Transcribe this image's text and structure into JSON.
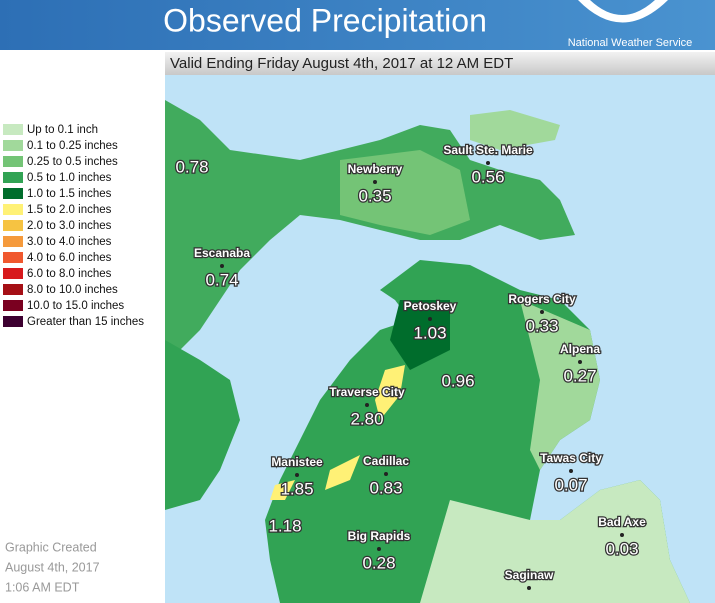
{
  "header": {
    "title": "Observed Precipitation",
    "agency": "National Weather Service"
  },
  "subheader": "Valid Ending Friday August 4th, 2017 at 12 AM EDT",
  "legend": {
    "items": [
      {
        "label": "Up to 0.1 inch",
        "color": "#c7e9c0"
      },
      {
        "label": "0.1 to 0.25 inches",
        "color": "#a1d99b"
      },
      {
        "label": "0.25 to 0.5 inches",
        "color": "#74c476"
      },
      {
        "label": "0.5 to 1.0 inches",
        "color": "#31a354"
      },
      {
        "label": "1.0 to 1.5 inches",
        "color": "#006d2c"
      },
      {
        "label": "1.5 to 2.0 inches",
        "color": "#fff176"
      },
      {
        "label": "2.0 to 3.0 inches",
        "color": "#f6c342"
      },
      {
        "label": "3.0 to 4.0 inches",
        "color": "#f59a3c"
      },
      {
        "label": "4.0 to 6.0 inches",
        "color": "#f0582e"
      },
      {
        "label": "6.0 to 8.0 inches",
        "color": "#d7191c"
      },
      {
        "label": "8.0 to 10.0 inches",
        "color": "#a50f15"
      },
      {
        "label": "10.0 to 15.0 inches",
        "color": "#7a0020"
      },
      {
        "label": "Greater than 15 inches",
        "color": "#3d0030"
      }
    ]
  },
  "map": {
    "cities": [
      {
        "name": "Newberry",
        "value": "0.35"
      },
      {
        "name": "Sault Ste. Marie",
        "value": "0.56"
      },
      {
        "name": "Escanaba",
        "value": "0.74"
      },
      {
        "name": "Petoskey",
        "value": "1.03"
      },
      {
        "name": "Rogers City",
        "value": "0.33"
      },
      {
        "name": "Alpena",
        "value": "0.27"
      },
      {
        "name": "Traverse City",
        "value": "2.80"
      },
      {
        "name": "Manistee",
        "value": "1.85"
      },
      {
        "name": "Cadillac",
        "value": "0.83"
      },
      {
        "name": "Tawas City",
        "value": "0.07"
      },
      {
        "name": "Big Rapids",
        "value": "0.28"
      },
      {
        "name": "Bad Axe",
        "value": "0.03"
      },
      {
        "name": "Saginaw"
      }
    ],
    "values": [
      "0.78",
      "0.96",
      "1.18"
    ]
  },
  "footer": [
    "Graphic Created",
    "August 4th, 2017",
    "1:06 AM EDT"
  ]
}
